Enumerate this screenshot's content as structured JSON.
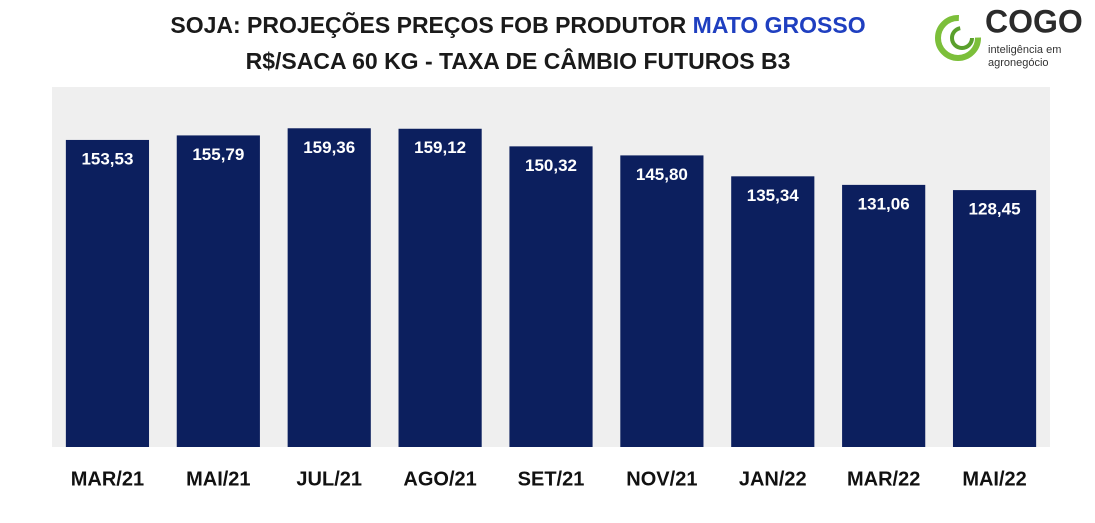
{
  "chart_data": {
    "type": "bar",
    "title": "SOJA: PROJEÇÕES PREÇOS FOB PRODUTOR",
    "title_highlight": "MATO GROSSO",
    "subtitle": "R$/SACA 60 KG - TAXA DE CÂMBIO FUTUROS B3",
    "categories": [
      "MAR/21",
      "MAI/21",
      "JUL/21",
      "AGO/21",
      "SET/21",
      "NOV/21",
      "JAN/22",
      "MAR/22",
      "MAI/22"
    ],
    "values": [
      153.53,
      155.79,
      159.36,
      159.12,
      150.32,
      145.8,
      135.34,
      131.06,
      128.45
    ],
    "value_labels": [
      "153,53",
      "155,79",
      "159,36",
      "159,12",
      "150,32",
      "145,80",
      "135,34",
      "131,06",
      "128,45"
    ],
    "color": "#0c1f5e",
    "highlight_color": "#1f3fc0",
    "ylim": [
      0,
      180
    ]
  },
  "logo": {
    "name": "COGO",
    "tagline_1": "inteligência em",
    "tagline_2": "agronegócio"
  }
}
